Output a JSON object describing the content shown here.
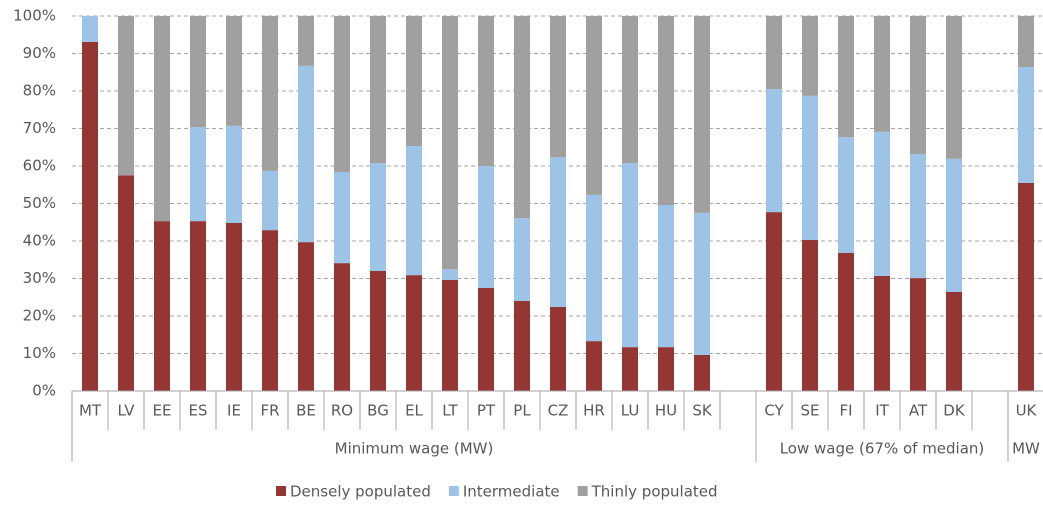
{
  "chart_data": {
    "type": "stacked_bar",
    "categories": [
      "MT",
      "LV",
      "EE",
      "ES",
      "IE",
      "FR",
      "BE",
      "RO",
      "BG",
      "EL",
      "LT",
      "PT",
      "PL",
      "CZ",
      "HR",
      "LU",
      "HU",
      "SK",
      null,
      "CY",
      "SE",
      "FI",
      "IT",
      "AT",
      "DK",
      null,
      "UK"
    ],
    "groups": [
      {
        "name": "Minimum wage (MW)",
        "size": 19
      },
      {
        "name": "Low wage (67% of median)",
        "size": 7
      },
      {
        "name": "MW",
        "size": 1
      }
    ],
    "series": [
      {
        "name": "Densely populated",
        "color": "#943634",
        "values": [
          93.1,
          57.5,
          45.3,
          45.3,
          44.8,
          42.9,
          39.7,
          34.1,
          32.0,
          30.9,
          29.6,
          27.5,
          24.0,
          22.4,
          13.3,
          11.7,
          11.7,
          9.6,
          null,
          47.7,
          40.3,
          36.8,
          30.7,
          30.1,
          26.4,
          null,
          55.5
        ]
      },
      {
        "name": "Intermediate",
        "color": "#9dc3e6",
        "values": [
          6.9,
          0,
          0,
          25.1,
          25.9,
          15.8,
          47.0,
          24.3,
          28.8,
          34.4,
          2.9,
          32.5,
          22.1,
          40.0,
          39.0,
          49.1,
          37.9,
          37.9,
          null,
          32.8,
          38.4,
          30.9,
          38.4,
          33.1,
          35.5,
          null,
          30.9
        ]
      },
      {
        "name": "Thinly populated",
        "color": "#a0a0a0",
        "values": [
          0,
          42.5,
          54.7,
          29.6,
          29.3,
          41.3,
          13.3,
          41.6,
          39.2,
          34.7,
          67.5,
          40.0,
          53.9,
          37.6,
          47.7,
          39.2,
          50.4,
          52.5,
          null,
          19.5,
          21.3,
          32.3,
          30.9,
          36.8,
          38.1,
          null,
          13.6
        ]
      }
    ],
    "ylim": [
      0,
      100
    ],
    "yticks": [
      {
        "value": 0,
        "label": "0%"
      },
      {
        "value": 10,
        "label": "10%"
      },
      {
        "value": 20,
        "label": "20%"
      },
      {
        "value": 30,
        "label": "30%"
      },
      {
        "value": 40,
        "label": "40%"
      },
      {
        "value": 50,
        "label": "50%"
      },
      {
        "value": 60,
        "label": "60%"
      },
      {
        "value": 70,
        "label": "70%"
      },
      {
        "value": 80,
        "label": "80%"
      },
      {
        "value": 90,
        "label": "90%"
      },
      {
        "value": 100,
        "label": "100%"
      }
    ],
    "grid": true,
    "legend": "bottom"
  }
}
